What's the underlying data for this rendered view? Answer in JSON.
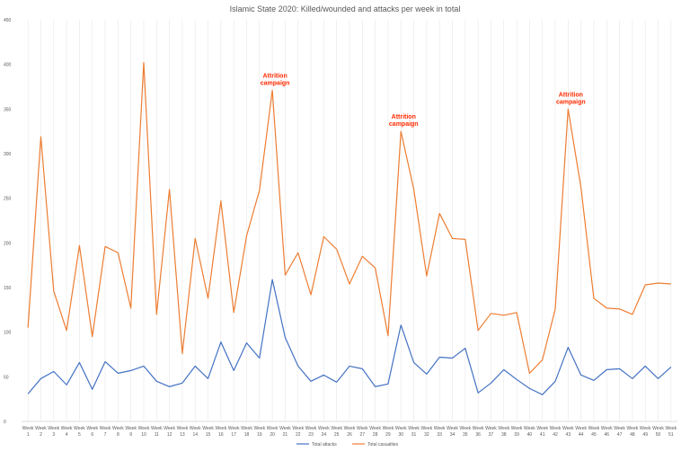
{
  "chart_data": {
    "type": "line",
    "title": "Islamic State 2020: Killed/wounded  and attacks per week in total",
    "xlabel": "",
    "ylabel": "",
    "ylim": [
      0,
      450
    ],
    "yticks": [
      0,
      50,
      100,
      150,
      200,
      250,
      300,
      350,
      400,
      450
    ],
    "grid": "vertical",
    "legend_position": "bottom",
    "categories": [
      "Week 1",
      "Week 2",
      "Week 3",
      "Week 4",
      "Week 5",
      "Week 6",
      "Week 7",
      "Week 8",
      "Week 9",
      "Week 10",
      "Week 11",
      "Week 12",
      "Week 13",
      "Week 14",
      "Week 15",
      "Week 16",
      "Week 17",
      "Week 18",
      "Week 19",
      "Week 20",
      "Week 21",
      "Week 22",
      "Week 23",
      "Week 24",
      "Week 25",
      "Week 26",
      "Week 27",
      "Week 28",
      "Week 29",
      "Week 30",
      "Week 31",
      "Week 32",
      "Week 33",
      "Week 34",
      "Week 35",
      "Week 36",
      "Week 37",
      "Week 38",
      "Week 39",
      "Week 40",
      "Week 41",
      "Week 42",
      "Week 43",
      "Week 44",
      "Week 45",
      "Week 46",
      "Week 47",
      "Week 48",
      "Week 49",
      "Week 50",
      "Week 51"
    ],
    "series": [
      {
        "name": "Total attacks",
        "color": "#4472c4",
        "values": [
          31,
          48,
          56,
          41,
          66,
          36,
          67,
          54,
          57,
          62,
          45,
          39,
          43,
          62,
          48,
          89,
          57,
          88,
          71,
          159,
          94,
          62,
          45,
          52,
          44,
          62,
          59,
          39,
          42,
          108,
          66,
          53,
          72,
          71,
          82,
          32,
          43,
          58,
          47,
          37,
          30,
          45,
          83,
          52,
          46,
          58,
          59,
          48,
          62,
          48,
          61
        ]
      },
      {
        "name": "Total casualties",
        "color": "#ed7d31",
        "values": [
          105,
          319,
          146,
          102,
          197,
          95,
          196,
          189,
          127,
          402,
          120,
          260,
          76,
          205,
          138,
          247,
          122,
          208,
          259,
          371,
          164,
          189,
          142,
          207,
          193,
          154,
          185,
          172,
          96,
          325,
          260,
          163,
          233,
          205,
          204,
          102,
          121,
          119,
          122,
          54,
          69,
          126,
          350,
          262,
          138,
          127,
          126,
          120,
          153,
          155,
          154
        ]
      }
    ],
    "annotations": [
      {
        "text": "Attrition\ncampaign",
        "week": 20
      },
      {
        "text": "Attrition\ncampaign",
        "week": 30
      },
      {
        "text": "Attrition\ncampaign",
        "week": 43
      }
    ]
  }
}
